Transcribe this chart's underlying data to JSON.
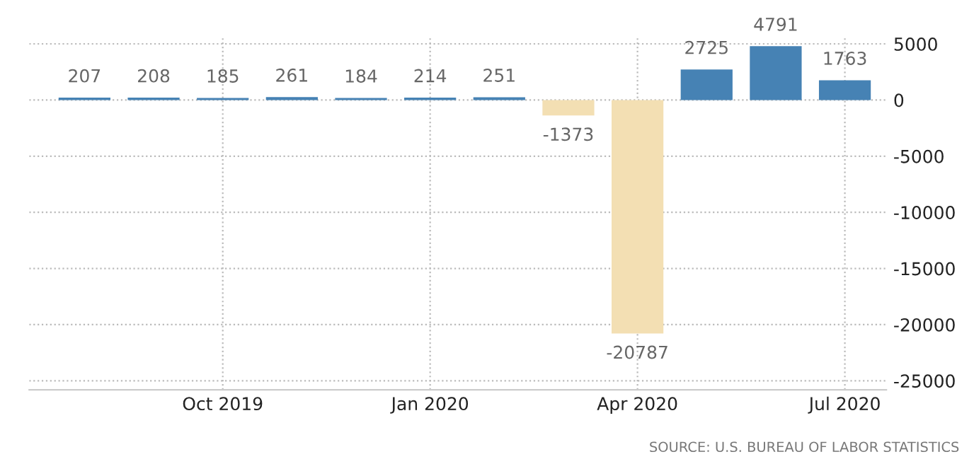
{
  "chart_data": {
    "type": "bar",
    "categories": [
      null,
      null,
      "Oct 2019",
      null,
      null,
      "Jan 2020",
      null,
      null,
      "Apr 2020",
      null,
      null,
      "Jul 2020"
    ],
    "values": [
      207,
      208,
      185,
      261,
      184,
      214,
      251,
      -1373,
      -20787,
      2725,
      4791,
      1763
    ],
    "colors": [
      "#4682b4",
      "#4682b4",
      "#4682b4",
      "#4682b4",
      "#4682b4",
      "#4682b4",
      "#4682b4",
      "#f3dfb3",
      "#f3dfb3",
      "#4682b4",
      "#4682b4",
      "#4682b4"
    ],
    "ylim": [
      -25800,
      5600
    ],
    "yticks": [
      5000,
      0,
      -5000,
      -10000,
      -15000,
      -20000,
      -25000
    ],
    "grid": true,
    "data_labels": true,
    "annotations": [
      "SOURCE: U.S. BUREAU OF LABOR STATISTICS"
    ]
  }
}
